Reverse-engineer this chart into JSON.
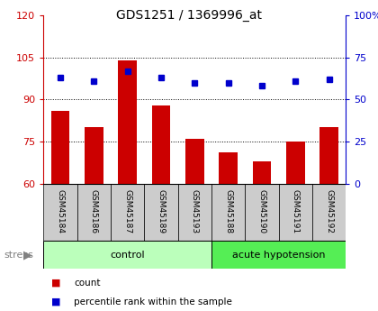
{
  "title": "GDS1251 / 1369996_at",
  "samples": [
    "GSM45184",
    "GSM45186",
    "GSM45187",
    "GSM45189",
    "GSM45193",
    "GSM45188",
    "GSM45190",
    "GSM45191",
    "GSM45192"
  ],
  "bar_values": [
    86,
    80,
    104,
    88,
    76,
    71,
    68,
    75,
    80
  ],
  "pct_values": [
    63,
    61,
    67,
    63,
    60,
    60,
    58,
    61,
    62
  ],
  "bar_color": "#cc0000",
  "pct_color": "#0000cc",
  "ylim_left": [
    60,
    120
  ],
  "ylim_right": [
    0,
    100
  ],
  "yticks_left": [
    60,
    75,
    90,
    105,
    120
  ],
  "yticks_right": [
    0,
    25,
    50,
    75,
    100
  ],
  "ytick_labels_right": [
    "0",
    "25",
    "50",
    "75",
    "100%"
  ],
  "control_count": 5,
  "acute_count": 4,
  "control_label": "control",
  "acute_label": "acute hypotension",
  "stress_label": "stress",
  "legend_count": "count",
  "legend_pct": "percentile rank within the sample",
  "control_color": "#bbffbb",
  "acute_color": "#55ee55",
  "tickbox_color": "#cccccc",
  "bg_color": "#ffffff"
}
